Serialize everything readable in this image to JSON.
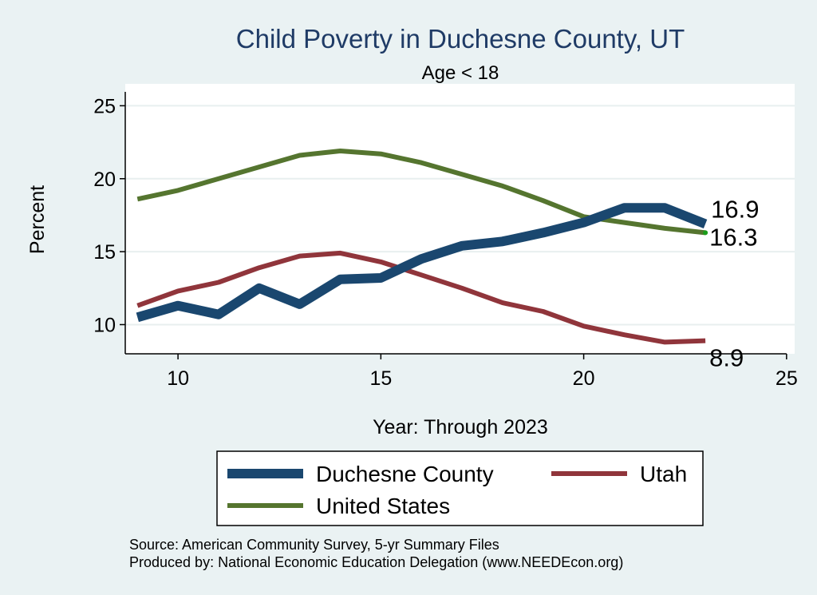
{
  "chart_data": {
    "type": "line",
    "title": "Child Poverty in Duchesne County, UT",
    "subtitle": "Age < 18",
    "xlabel": "Year: Through 2023",
    "ylabel": "Percent",
    "xlim": [
      8.7,
      25.2
    ],
    "ylim": [
      8,
      26.5
    ],
    "xticks": [
      10,
      15,
      20,
      25
    ],
    "yticks": [
      10,
      15,
      20,
      25
    ],
    "grid": true,
    "x": [
      9,
      10,
      11,
      12,
      13,
      14,
      15,
      16,
      17,
      18,
      19,
      20,
      21,
      22,
      23
    ],
    "series": [
      {
        "name": "Duchesne County",
        "color": "#1a476f",
        "values": [
          10.5,
          11.3,
          10.7,
          12.5,
          11.4,
          13.1,
          13.2,
          14.5,
          15.4,
          15.7,
          16.3,
          17.0,
          18.0,
          18.0,
          16.9
        ],
        "end_label": "16.9"
      },
      {
        "name": "Utah",
        "color": "#90353b",
        "values": [
          11.3,
          12.3,
          12.9,
          13.9,
          14.7,
          14.9,
          14.3,
          13.4,
          12.5,
          11.5,
          10.9,
          9.9,
          9.3,
          8.8,
          8.9
        ],
        "end_label": "8.9"
      },
      {
        "name": "United States",
        "color": "#55752f",
        "values": [
          18.6,
          19.2,
          20.0,
          20.8,
          21.6,
          21.9,
          21.7,
          21.1,
          20.3,
          19.5,
          18.5,
          17.4,
          17.0,
          16.6,
          16.3
        ],
        "end_label": "16.3"
      }
    ],
    "legend": {
      "placement": "bottom",
      "entries": [
        "Duchesne County",
        "Utah",
        "United States"
      ]
    },
    "notes": [
      "Source: American Community Survey, 5-yr Summary Files",
      "Produced by: National Economic Education Delegation (www.NEEDEcon.org)"
    ]
  }
}
